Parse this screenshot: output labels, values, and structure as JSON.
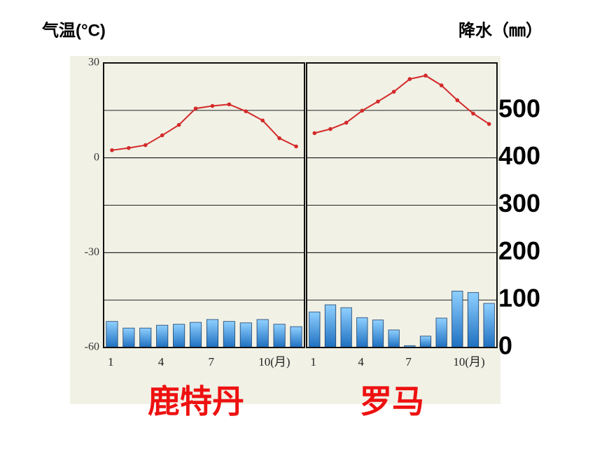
{
  "chart_data": [
    {
      "type": "climate",
      "title": "鹿特丹",
      "ylabel": "气温(°C)",
      "categories": [
        "1",
        null,
        null,
        "4",
        null,
        null,
        "7",
        null,
        null,
        "10(月)",
        null,
        null
      ],
      "series": [
        {
          "type": "line",
          "color": "#d42a2a",
          "values": [
            2.4,
            3.1,
            4,
            7.1,
            10.4,
            15.6,
            16.4,
            16.9,
            14.7,
            11.8,
            6.2,
            3.6
          ]
        },
        {
          "type": "bar",
          "axis": "y2",
          "color": "#2f8fd6",
          "values": [
            55,
            41,
            41,
            47,
            49,
            53,
            59,
            55,
            52,
            59,
            49,
            44
          ]
        }
      ],
      "ylim": [
        -60,
        30
      ],
      "yticks": [
        30,
        0,
        -30,
        -60
      ],
      "y2lim": [
        0,
        600
      ],
      "y2ticks": [
        100,
        200,
        300,
        400,
        500
      ],
      "grid": true
    },
    {
      "type": "climate",
      "title": "罗马",
      "y2label": "降水（㎜）",
      "categories": [
        "1",
        null,
        null,
        "4",
        null,
        null,
        "7",
        null,
        null,
        "10(月)",
        null,
        null
      ],
      "series": [
        {
          "type": "line",
          "color": "#d42a2a",
          "values": [
            7.8,
            9.1,
            11.1,
            14.9,
            17.8,
            20.9,
            24.9,
            26,
            22.9,
            18.2,
            14,
            10.7
          ]
        },
        {
          "type": "bar",
          "axis": "y2",
          "color": "#2f8fd6",
          "values": [
            75,
            90,
            84,
            63,
            58,
            37,
            4,
            24,
            62,
            119,
            116,
            93
          ]
        }
      ],
      "ylim": [
        -60,
        30
      ],
      "yticks": [
        30,
        0,
        -30
      ],
      "y2lim": [
        0,
        600
      ],
      "y2ticks": [
        0,
        100,
        200,
        300,
        400,
        500
      ],
      "grid": true
    }
  ]
}
